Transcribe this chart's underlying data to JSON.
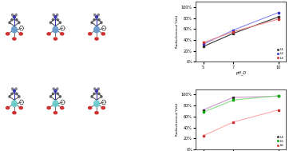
{
  "top_chart": {
    "title": "",
    "xlabel": "pH_D",
    "ylabel": "Radiochemical Yield",
    "xlim": [
      4.5,
      10.5
    ],
    "ylim": [
      0,
      110
    ],
    "yticks": [
      0,
      20,
      40,
      60,
      80,
      100
    ],
    "ytick_labels": [
      "0%",
      "20%",
      "40%",
      "60%",
      "80%",
      "100%"
    ],
    "xticks": [
      5,
      7,
      10
    ],
    "series": [
      {
        "label": "L1",
        "x": [
          5,
          7,
          10
        ],
        "y": [
          28,
          52,
          82
        ],
        "color": "#333333",
        "marker": "s",
        "linecolor": "#333333"
      },
      {
        "label": "L2",
        "x": [
          5,
          7,
          10
        ],
        "y": [
          32,
          58,
          90
        ],
        "color": "#3333cc",
        "marker": "s",
        "linecolor": "#8888ee"
      },
      {
        "label": "L3",
        "x": [
          5,
          7,
          10
        ],
        "y": [
          35,
          55,
          78
        ],
        "color": "#cc3333",
        "marker": "s",
        "linecolor": "#ee8888"
      }
    ]
  },
  "bottom_chart": {
    "title": "",
    "xlabel": "pH_D",
    "ylabel": "Radiochemical Yield",
    "xlim": [
      4.5,
      10.5
    ],
    "ylim": [
      0,
      110
    ],
    "yticks": [
      0,
      20,
      40,
      60,
      80,
      100
    ],
    "ytick_labels": [
      "0%",
      "20%",
      "40%",
      "60%",
      "80%",
      "100%"
    ],
    "xticks": [
      5,
      7,
      10
    ],
    "series": [
      {
        "label": "L4",
        "x": [
          5,
          7,
          10
        ],
        "y": [
          72,
          95,
          97
        ],
        "color": "#333333",
        "marker": "s",
        "linecolor": "#cc99cc"
      },
      {
        "label": "L5",
        "x": [
          5,
          7,
          10
        ],
        "y": [
          68,
          90,
          98
        ],
        "color": "#00aa00",
        "marker": "s",
        "linecolor": "#88dd88"
      },
      {
        "label": "L6",
        "x": [
          5,
          7,
          10
        ],
        "y": [
          25,
          50,
          72
        ],
        "color": "#cc3333",
        "marker": "s",
        "linecolor": "#ffaaaa"
      }
    ]
  },
  "background_color": "#ffffff"
}
